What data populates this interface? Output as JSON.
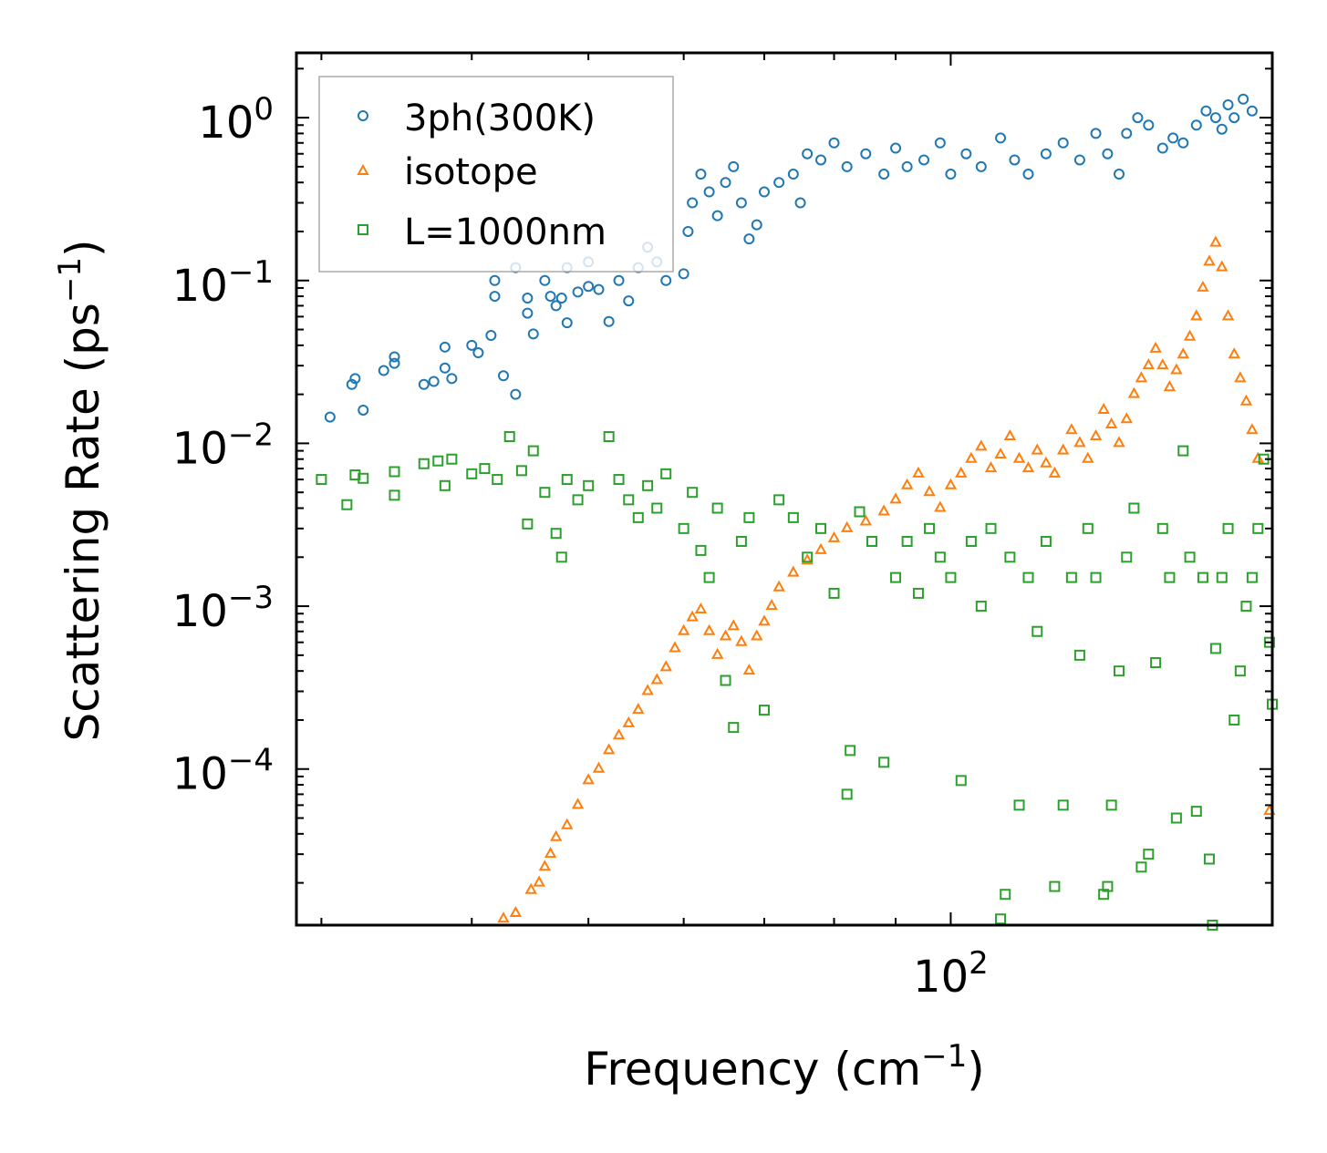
{
  "chart_data": {
    "type": "scatter",
    "title": "",
    "xlabel": "Frequency (cm",
    "xlabel_sup": "−1",
    "xlabel_suffix": ")",
    "ylabel": "Scattering Rate (ps",
    "ylabel_sup": "−1",
    "ylabel_suffix": ")",
    "xscale": "log",
    "yscale": "log",
    "xlim": [
      28.6,
      185
    ],
    "ylim": [
      1.1e-05,
      2.5
    ],
    "x_ticks": [
      {
        "value": 100,
        "base": "10",
        "exp": "2"
      }
    ],
    "y_ticks": [
      {
        "value": 1,
        "base": "10",
        "exp": "0"
      },
      {
        "value": 0.1,
        "base": "10",
        "exp": "−1"
      },
      {
        "value": 0.01,
        "base": "10",
        "exp": "−2"
      },
      {
        "value": 0.001,
        "base": "10",
        "exp": "−3"
      },
      {
        "value": 0.0001,
        "base": "10",
        "exp": "−4"
      }
    ],
    "legend_position": "top-left",
    "series": [
      {
        "name": "3ph(300K)",
        "marker": "circle",
        "color": "#1f77b4"
      },
      {
        "name": "isotope",
        "marker": "triangle",
        "color": "#ff7f0e"
      },
      {
        "name": "L=1000nm",
        "marker": "square",
        "color": "#2ca02c"
      }
    ],
    "note": "Dense point clouds; key points sampled from figure",
    "points_3ph": [
      [
        30.5,
        0.0145
      ],
      [
        31.8,
        0.023
      ],
      [
        32.0,
        0.025
      ],
      [
        32.5,
        0.016
      ],
      [
        33.8,
        0.028
      ],
      [
        34.5,
        0.034
      ],
      [
        34.5,
        0.031
      ],
      [
        36.5,
        0.023
      ],
      [
        37.2,
        0.024
      ],
      [
        38.0,
        0.039
      ],
      [
        38.0,
        0.029
      ],
      [
        38.5,
        0.025
      ],
      [
        40.0,
        0.04
      ],
      [
        40.5,
        0.036
      ],
      [
        41.5,
        0.046
      ],
      [
        42.5,
        0.026
      ],
      [
        43.5,
        0.02
      ],
      [
        41.8,
        0.1
      ],
      [
        41.8,
        0.08
      ],
      [
        43.5,
        0.12
      ],
      [
        44.5,
        0.063
      ],
      [
        45.0,
        0.047
      ],
      [
        44.5,
        0.078
      ],
      [
        46.0,
        0.1
      ],
      [
        46.5,
        0.08
      ],
      [
        47.0,
        0.07
      ],
      [
        47.5,
        0.078
      ],
      [
        48.0,
        0.055
      ],
      [
        48.0,
        0.12
      ],
      [
        49.0,
        0.085
      ],
      [
        50.0,
        0.092
      ],
      [
        51.0,
        0.088
      ],
      [
        52.0,
        0.056
      ],
      [
        50.0,
        0.13
      ],
      [
        53.0,
        0.1
      ],
      [
        54.0,
        0.075
      ],
      [
        55.0,
        0.12
      ],
      [
        56.0,
        0.16
      ],
      [
        57.0,
        0.13
      ],
      [
        58.0,
        0.1
      ],
      [
        60.0,
        0.11
      ],
      [
        60.5,
        0.2
      ],
      [
        61.0,
        0.3
      ],
      [
        62.0,
        0.45
      ],
      [
        63.0,
        0.35
      ],
      [
        64.0,
        0.25
      ],
      [
        65.0,
        0.4
      ],
      [
        66.0,
        0.5
      ],
      [
        67.0,
        0.3
      ],
      [
        68.0,
        0.18
      ],
      [
        69.0,
        0.22
      ],
      [
        70.0,
        0.35
      ],
      [
        72.0,
        0.4
      ],
      [
        74.0,
        0.45
      ],
      [
        75.0,
        0.3
      ],
      [
        76.0,
        0.6
      ],
      [
        78.0,
        0.55
      ],
      [
        80.0,
        0.7
      ],
      [
        82.0,
        0.5
      ],
      [
        85.0,
        0.6
      ],
      [
        88.0,
        0.45
      ],
      [
        90.0,
        0.65
      ],
      [
        92.0,
        0.5
      ],
      [
        95.0,
        0.55
      ],
      [
        98.0,
        0.7
      ],
      [
        100.0,
        0.45
      ],
      [
        103.0,
        0.6
      ],
      [
        106.0,
        0.5
      ],
      [
        110.0,
        0.75
      ],
      [
        113.0,
        0.55
      ],
      [
        116.0,
        0.45
      ],
      [
        120.0,
        0.6
      ],
      [
        124.0,
        0.7
      ],
      [
        128.0,
        0.55
      ],
      [
        132.0,
        0.8
      ],
      [
        135.0,
        0.6
      ],
      [
        138.0,
        0.45
      ],
      [
        140.0,
        0.8
      ],
      [
        143.0,
        1.0
      ],
      [
        146.0,
        0.9
      ],
      [
        150.0,
        0.65
      ],
      [
        153.0,
        0.75
      ],
      [
        156.0,
        0.7
      ],
      [
        160.0,
        0.9
      ],
      [
        163.0,
        1.1
      ],
      [
        166.0,
        1.0
      ],
      [
        168.0,
        0.85
      ],
      [
        170.0,
        1.2
      ],
      [
        172.0,
        1.0
      ],
      [
        175.0,
        1.3
      ],
      [
        178.0,
        1.1
      ]
    ],
    "points_isotope": [
      [
        42.5,
        1.2e-05
      ],
      [
        43.5,
        1.3e-05
      ],
      [
        44.8,
        1.8e-05
      ],
      [
        45.5,
        2e-05
      ],
      [
        46.0,
        2.5e-05
      ],
      [
        46.5,
        3e-05
      ],
      [
        47.0,
        3.8e-05
      ],
      [
        48.0,
        4.5e-05
      ],
      [
        49.0,
        6e-05
      ],
      [
        50.0,
        8.5e-05
      ],
      [
        51.0,
        0.0001
      ],
      [
        52.0,
        0.00013
      ],
      [
        53.0,
        0.00016
      ],
      [
        54.0,
        0.00019
      ],
      [
        55.0,
        0.00023
      ],
      [
        56.0,
        0.0003
      ],
      [
        57.0,
        0.00035
      ],
      [
        58.0,
        0.00042
      ],
      [
        59.0,
        0.00055
      ],
      [
        60.0,
        0.0007
      ],
      [
        61.0,
        0.00085
      ],
      [
        62.0,
        0.00095
      ],
      [
        63.0,
        0.0007
      ],
      [
        64.0,
        0.0005
      ],
      [
        65.0,
        0.00065
      ],
      [
        66.0,
        0.00075
      ],
      [
        67.0,
        0.0006
      ],
      [
        68.0,
        0.0004
      ],
      [
        69.0,
        0.00065
      ],
      [
        70.0,
        0.0008
      ],
      [
        71.0,
        0.001
      ],
      [
        72.0,
        0.0013
      ],
      [
        74.0,
        0.0016
      ],
      [
        76.0,
        0.0019
      ],
      [
        78.0,
        0.0022
      ],
      [
        80.0,
        0.0026
      ],
      [
        82.0,
        0.003
      ],
      [
        85.0,
        0.0033
      ],
      [
        88.0,
        0.0038
      ],
      [
        90.0,
        0.0045
      ],
      [
        92.0,
        0.0055
      ],
      [
        94.0,
        0.0065
      ],
      [
        96.0,
        0.005
      ],
      [
        98.0,
        0.004
      ],
      [
        100.0,
        0.0055
      ],
      [
        102.0,
        0.0065
      ],
      [
        104.0,
        0.008
      ],
      [
        106.0,
        0.0095
      ],
      [
        108.0,
        0.007
      ],
      [
        110.0,
        0.0085
      ],
      [
        112.0,
        0.011
      ],
      [
        114.0,
        0.008
      ],
      [
        116.0,
        0.007
      ],
      [
        118.0,
        0.009
      ],
      [
        120.0,
        0.0075
      ],
      [
        122.0,
        0.0065
      ],
      [
        124.0,
        0.009
      ],
      [
        126.0,
        0.012
      ],
      [
        128.0,
        0.01
      ],
      [
        130.0,
        0.008
      ],
      [
        132.0,
        0.011
      ],
      [
        134.0,
        0.016
      ],
      [
        136.0,
        0.013
      ],
      [
        138.0,
        0.01
      ],
      [
        140.0,
        0.014
      ],
      [
        142.0,
        0.02
      ],
      [
        144.0,
        0.025
      ],
      [
        146.0,
        0.03
      ],
      [
        148.0,
        0.038
      ],
      [
        150.0,
        0.03
      ],
      [
        152.0,
        0.022
      ],
      [
        154.0,
        0.028
      ],
      [
        156.0,
        0.035
      ],
      [
        158.0,
        0.045
      ],
      [
        160.0,
        0.06
      ],
      [
        162.0,
        0.09
      ],
      [
        164.0,
        0.13
      ],
      [
        166.0,
        0.17
      ],
      [
        168.0,
        0.12
      ],
      [
        170.0,
        0.06
      ],
      [
        172.0,
        0.035
      ],
      [
        174.0,
        0.025
      ],
      [
        176.0,
        0.018
      ],
      [
        178.0,
        0.012
      ],
      [
        180.0,
        0.008
      ],
      [
        184.0,
        5.5e-05
      ]
    ],
    "points_L1000": [
      [
        30.0,
        0.006
      ],
      [
        31.5,
        0.0042
      ],
      [
        32.0,
        0.0064
      ],
      [
        32.5,
        0.0061
      ],
      [
        34.5,
        0.0067
      ],
      [
        34.5,
        0.0048
      ],
      [
        36.5,
        0.0075
      ],
      [
        37.5,
        0.0078
      ],
      [
        38.0,
        0.0055
      ],
      [
        38.5,
        0.008
      ],
      [
        40.0,
        0.0065
      ],
      [
        41.0,
        0.007
      ],
      [
        42.0,
        0.006
      ],
      [
        43.0,
        0.011
      ],
      [
        44.0,
        0.0068
      ],
      [
        45.0,
        0.009
      ],
      [
        44.5,
        0.0032
      ],
      [
        46.0,
        0.005
      ],
      [
        47.0,
        0.0028
      ],
      [
        47.5,
        0.002
      ],
      [
        48.0,
        0.006
      ],
      [
        49.0,
        0.0045
      ],
      [
        50.0,
        0.0055
      ],
      [
        52.0,
        0.011
      ],
      [
        53.0,
        0.006
      ],
      [
        54.0,
        0.0045
      ],
      [
        55.0,
        0.0035
      ],
      [
        56.0,
        0.0055
      ],
      [
        57.0,
        0.004
      ],
      [
        58.0,
        0.0065
      ],
      [
        60.0,
        0.003
      ],
      [
        61.0,
        0.005
      ],
      [
        62.0,
        0.0022
      ],
      [
        63.0,
        0.0015
      ],
      [
        64.0,
        0.004
      ],
      [
        65.0,
        0.00035
      ],
      [
        66.0,
        0.00018
      ],
      [
        67.0,
        0.0025
      ],
      [
        68.0,
        0.0035
      ],
      [
        70.0,
        0.00023
      ],
      [
        72.0,
        0.0045
      ],
      [
        74.0,
        0.0035
      ],
      [
        76.0,
        0.002
      ],
      [
        78.0,
        0.003
      ],
      [
        80.0,
        0.0012
      ],
      [
        82.0,
        7e-05
      ],
      [
        82.5,
        0.00013
      ],
      [
        84.0,
        0.0038
      ],
      [
        86.0,
        0.0025
      ],
      [
        88.0,
        0.00011
      ],
      [
        90.0,
        0.0015
      ],
      [
        92.0,
        0.0025
      ],
      [
        94.0,
        0.0012
      ],
      [
        96.0,
        0.003
      ],
      [
        98.0,
        0.002
      ],
      [
        100.0,
        0.0015
      ],
      [
        102.0,
        8.5e-05
      ],
      [
        104.0,
        0.0025
      ],
      [
        106.0,
        0.001
      ],
      [
        108.0,
        0.003
      ],
      [
        110.0,
        1.2e-05
      ],
      [
        111.0,
        1.7e-05
      ],
      [
        112.0,
        0.002
      ],
      [
        114.0,
        6e-05
      ],
      [
        116.0,
        0.0015
      ],
      [
        118.0,
        0.0007
      ],
      [
        120.0,
        0.0025
      ],
      [
        122.0,
        1.9e-05
      ],
      [
        124.0,
        6e-05
      ],
      [
        126.0,
        0.0015
      ],
      [
        128.0,
        0.0005
      ],
      [
        130.0,
        0.003
      ],
      [
        132.0,
        0.0015
      ],
      [
        134.0,
        1.7e-05
      ],
      [
        135.0,
        1.9e-05
      ],
      [
        136.0,
        6e-05
      ],
      [
        138.0,
        0.0004
      ],
      [
        140.0,
        0.002
      ],
      [
        142.0,
        0.004
      ],
      [
        144.0,
        2.5e-05
      ],
      [
        146.0,
        3e-05
      ],
      [
        148.0,
        0.00045
      ],
      [
        150.0,
        0.003
      ],
      [
        152.0,
        0.0015
      ],
      [
        154.0,
        5e-05
      ],
      [
        156.0,
        0.009
      ],
      [
        158.0,
        0.002
      ],
      [
        160.0,
        5.5e-05
      ],
      [
        162.0,
        0.0015
      ],
      [
        164.0,
        2.8e-05
      ],
      [
        165.0,
        1.1e-05
      ],
      [
        166.0,
        0.00055
      ],
      [
        168.0,
        0.0015
      ],
      [
        170.0,
        0.003
      ],
      [
        172.0,
        0.0002
      ],
      [
        174.0,
        0.0004
      ],
      [
        176.0,
        0.001
      ],
      [
        178.0,
        0.0015
      ],
      [
        180.0,
        0.003
      ],
      [
        182.0,
        0.008
      ],
      [
        184.0,
        0.0006
      ],
      [
        185.0,
        0.00025
      ]
    ]
  }
}
